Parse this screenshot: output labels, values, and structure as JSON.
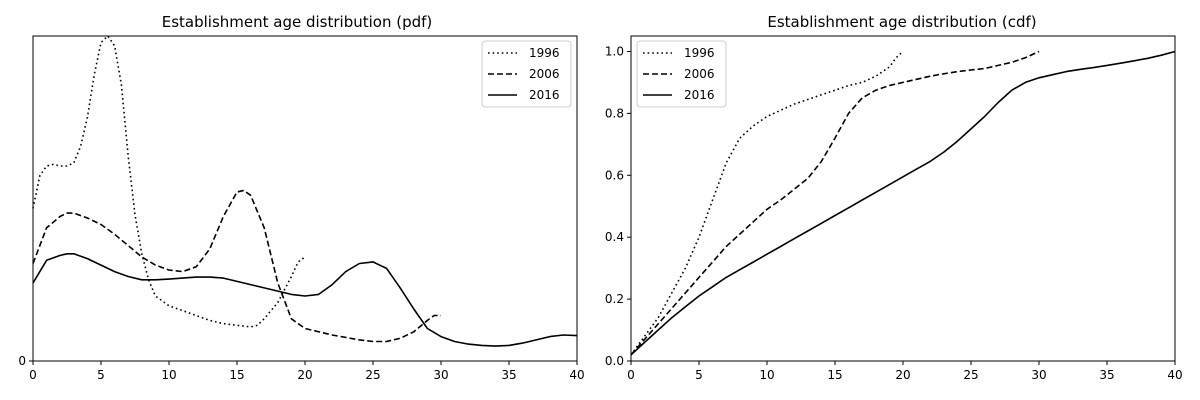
{
  "chart_data": [
    {
      "type": "line",
      "title": "Establishment age distribution (pdf)",
      "xlabel": "",
      "ylabel": "",
      "xlim": [
        0,
        40
      ],
      "ylim": [
        0,
        1
      ],
      "xticks": [
        "0",
        "5",
        "10",
        "15",
        "20",
        "25",
        "30",
        "35",
        "40"
      ],
      "yticks": [
        {
          "value": 0,
          "label": "0"
        }
      ],
      "grid": false,
      "legend_position": "top-right",
      "series": [
        {
          "name": "1996",
          "style": "dotted",
          "x": [
            0,
            0.5,
            1,
            1.5,
            2,
            2.5,
            3,
            3.5,
            4,
            4.5,
            5,
            5.5,
            6,
            6.5,
            7,
            7.5,
            8,
            8.5,
            9,
            10,
            11,
            12,
            13,
            14,
            15,
            16,
            16.5,
            17,
            18,
            19,
            19.5,
            20
          ],
          "y": [
            0.47,
            0.57,
            0.6,
            0.605,
            0.6,
            0.6,
            0.61,
            0.66,
            0.75,
            0.88,
            0.98,
            1.0,
            0.97,
            0.85,
            0.63,
            0.45,
            0.33,
            0.25,
            0.2,
            0.17,
            0.155,
            0.14,
            0.125,
            0.115,
            0.11,
            0.105,
            0.11,
            0.13,
            0.18,
            0.26,
            0.305,
            0.32
          ]
        },
        {
          "name": "2006",
          "style": "dashed",
          "x": [
            0,
            1,
            2,
            2.5,
            3,
            4,
            5,
            6,
            7,
            8,
            9,
            10,
            11,
            12,
            13,
            14,
            15,
            15.5,
            16,
            17,
            18,
            19,
            20,
            22,
            24,
            25,
            26,
            27,
            28,
            29,
            29.5,
            30
          ],
          "y": [
            0.3,
            0.41,
            0.445,
            0.455,
            0.455,
            0.44,
            0.42,
            0.39,
            0.355,
            0.32,
            0.295,
            0.28,
            0.275,
            0.29,
            0.345,
            0.445,
            0.52,
            0.525,
            0.51,
            0.41,
            0.24,
            0.13,
            0.1,
            0.08,
            0.065,
            0.06,
            0.06,
            0.07,
            0.09,
            0.125,
            0.14,
            0.14
          ]
        },
        {
          "name": "2016",
          "style": "solid",
          "x": [
            0,
            1,
            2,
            2.5,
            3,
            4,
            5,
            6,
            7,
            8,
            9,
            10,
            11,
            12,
            13,
            14,
            15,
            16,
            17,
            18,
            19,
            20,
            21,
            22,
            23,
            24,
            25,
            26,
            27,
            28,
            29,
            30,
            31,
            32,
            33,
            34,
            35,
            36,
            37,
            38,
            39,
            40
          ],
          "y": [
            0.24,
            0.31,
            0.325,
            0.33,
            0.33,
            0.315,
            0.295,
            0.275,
            0.26,
            0.25,
            0.25,
            0.252,
            0.255,
            0.258,
            0.258,
            0.255,
            0.245,
            0.235,
            0.225,
            0.215,
            0.205,
            0.2,
            0.205,
            0.235,
            0.275,
            0.3,
            0.305,
            0.285,
            0.225,
            0.16,
            0.1,
            0.075,
            0.06,
            0.052,
            0.048,
            0.046,
            0.048,
            0.055,
            0.065,
            0.075,
            0.08,
            0.078
          ]
        }
      ]
    },
    {
      "type": "line",
      "title": "Establishment age distribution (cdf)",
      "xlabel": "",
      "ylabel": "",
      "xlim": [
        0,
        40
      ],
      "ylim": [
        0,
        1.05
      ],
      "xticks": [
        "0",
        "5",
        "10",
        "15",
        "20",
        "25",
        "30",
        "35",
        "40"
      ],
      "yticks": [
        {
          "value": 0.0,
          "label": "0.0"
        },
        {
          "value": 0.2,
          "label": "0.2"
        },
        {
          "value": 0.4,
          "label": "0.4"
        },
        {
          "value": 0.6,
          "label": "0.6"
        },
        {
          "value": 0.8,
          "label": "0.8"
        },
        {
          "value": 1.0,
          "label": "1.0"
        }
      ],
      "grid": false,
      "legend_position": "top-left",
      "series": [
        {
          "name": "1996",
          "style": "dotted",
          "x": [
            0,
            1,
            2,
            3,
            4,
            5,
            6,
            7,
            8,
            9,
            10,
            11,
            12,
            13,
            14,
            15,
            16,
            17,
            18,
            19,
            19.5,
            20
          ],
          "y": [
            0.02,
            0.08,
            0.14,
            0.22,
            0.3,
            0.4,
            0.52,
            0.64,
            0.72,
            0.76,
            0.79,
            0.81,
            0.83,
            0.845,
            0.86,
            0.875,
            0.89,
            0.9,
            0.92,
            0.95,
            0.98,
            1.0
          ]
        },
        {
          "name": "2006",
          "style": "dashed",
          "x": [
            0,
            1,
            2,
            3,
            4,
            5,
            6,
            7,
            8,
            9,
            10,
            11,
            12,
            13,
            14,
            15,
            16,
            17,
            18,
            19,
            20,
            21,
            22,
            23,
            24,
            25,
            26,
            27,
            28,
            29,
            30
          ],
          "y": [
            0.02,
            0.07,
            0.12,
            0.17,
            0.22,
            0.27,
            0.32,
            0.37,
            0.41,
            0.45,
            0.49,
            0.52,
            0.555,
            0.59,
            0.645,
            0.72,
            0.8,
            0.85,
            0.875,
            0.89,
            0.9,
            0.91,
            0.92,
            0.928,
            0.935,
            0.94,
            0.945,
            0.955,
            0.965,
            0.98,
            1.0
          ]
        },
        {
          "name": "2016",
          "style": "solid",
          "x": [
            0,
            1,
            2,
            3,
            4,
            5,
            6,
            7,
            8,
            9,
            10,
            11,
            12,
            13,
            14,
            15,
            16,
            17,
            18,
            19,
            20,
            21,
            22,
            23,
            24,
            25,
            26,
            27,
            28,
            29,
            30,
            31,
            32,
            33,
            34,
            35,
            36,
            37,
            38,
            39,
            40
          ],
          "y": [
            0.02,
            0.06,
            0.1,
            0.14,
            0.175,
            0.21,
            0.24,
            0.27,
            0.295,
            0.32,
            0.345,
            0.37,
            0.395,
            0.42,
            0.445,
            0.47,
            0.495,
            0.52,
            0.545,
            0.57,
            0.595,
            0.62,
            0.645,
            0.675,
            0.71,
            0.75,
            0.79,
            0.835,
            0.875,
            0.9,
            0.915,
            0.925,
            0.935,
            0.942,
            0.948,
            0.955,
            0.962,
            0.97,
            0.978,
            0.988,
            1.0
          ]
        }
      ]
    }
  ]
}
